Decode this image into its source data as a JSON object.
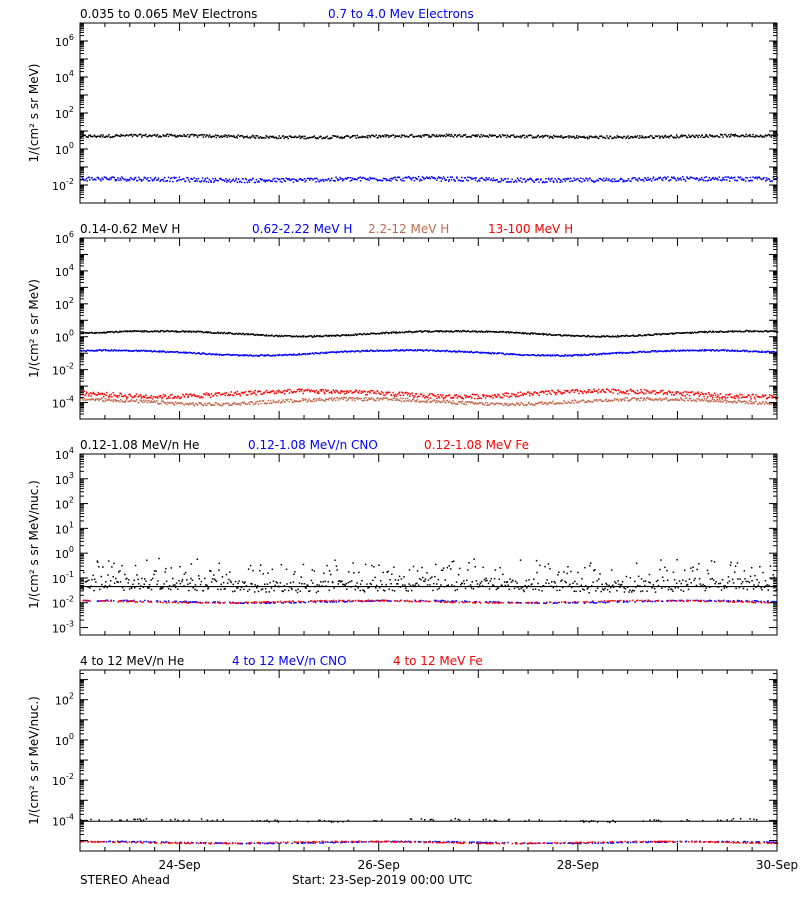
{
  "chart_data": [
    {
      "type": "scatter",
      "legend_placement": "top",
      "ylabel": "1/(cm² s sr MeV)",
      "yscale": "log",
      "ylim": [
        0.001,
        10000000
      ],
      "yticks": [
        {
          "exp": "-2"
        },
        {
          "exp": "0"
        },
        {
          "exp": "2"
        },
        {
          "exp": "4"
        },
        {
          "exp": "6"
        }
      ],
      "series": [
        {
          "name": "0.035 to 0.065 MeV Electrons",
          "color": "#000000",
          "level": 5,
          "spread": 0.08
        },
        {
          "name": "0.7 to 4.0 Mev Electrons",
          "color": "#0000ff",
          "level": 0.02,
          "spread": 0.12
        }
      ]
    },
    {
      "type": "scatter",
      "legend_placement": "top",
      "ylabel": "1/(cm² s sr MeV)",
      "yscale": "log",
      "ylim": [
        1e-05,
        1000000
      ],
      "yticks": [
        {
          "exp": "-4"
        },
        {
          "exp": "-2"
        },
        {
          "exp": "0"
        },
        {
          "exp": "2"
        },
        {
          "exp": "4"
        },
        {
          "exp": "6"
        }
      ],
      "series": [
        {
          "name": "0.14-0.62 MeV H",
          "color": "#000000",
          "level": 1.6,
          "spread": 0.04
        },
        {
          "name": "0.62-2.22 MeV H",
          "color": "#0000ff",
          "level": 0.11,
          "spread": 0.04
        },
        {
          "name": "2.2-12 MeV H",
          "color": "#c06a50",
          "level": 0.00012,
          "spread": 0.1
        },
        {
          "name": "13-100 MeV H",
          "color": "#ff0000",
          "level": 0.00035,
          "spread": 0.14
        }
      ]
    },
    {
      "type": "scatter",
      "legend_placement": "top",
      "ylabel": "1/(cm² s sr MeV/nuc.)",
      "yscale": "log",
      "ylim": [
        0.0005,
        10000
      ],
      "yticks": [
        {
          "exp": "-3"
        },
        {
          "exp": "-2"
        },
        {
          "exp": "-1"
        },
        {
          "exp": "0"
        },
        {
          "exp": "1"
        },
        {
          "exp": "2"
        },
        {
          "exp": "3"
        },
        {
          "exp": "4"
        }
      ],
      "series": [
        {
          "name": "0.12-1.08 MeV/n He",
          "color": "#000000",
          "level": 0.05,
          "spread": 0.25
        },
        {
          "name": "0.12-1.08 MeV/n CNO",
          "color": "#0000ff",
          "level": 0.011,
          "spread": 0.02
        },
        {
          "name": "0.12-1.08 MeV Fe",
          "color": "#ff0000",
          "level": 0.011,
          "spread": 0.02
        }
      ]
    },
    {
      "type": "scatter",
      "legend_placement": "top",
      "ylabel": "1/(cm² s sr MeV/nuc.)",
      "yscale": "log",
      "ylim": [
        3e-06,
        3000
      ],
      "yticks": [
        {
          "exp": "-4"
        },
        {
          "exp": "-2"
        },
        {
          "exp": "0"
        },
        {
          "exp": "2"
        }
      ],
      "series": [
        {
          "name": "4 to 12 MeV/n He",
          "color": "#000000",
          "level": 0.0001,
          "spread": 0.05
        },
        {
          "name": "4 to 12 MeV/n CNO",
          "color": "#0000ff",
          "level": 8e-06,
          "spread": 0.02
        },
        {
          "name": "4 to 12 MeV Fe",
          "color": "#ff0000",
          "level": 8e-06,
          "spread": 0.02
        }
      ]
    }
  ],
  "xaxis": {
    "range_days": [
      0,
      7
    ],
    "tick_labels": [
      {
        "label": "24-Sep",
        "day": 1
      },
      {
        "label": "26-Sep",
        "day": 3
      },
      {
        "label": "28-Sep",
        "day": 5
      },
      {
        "label": "30-Sep",
        "day": 7
      }
    ]
  },
  "footer": {
    "left": "STEREO Ahead",
    "center": "Start: 23-Sep-2019 00:00 UTC"
  }
}
